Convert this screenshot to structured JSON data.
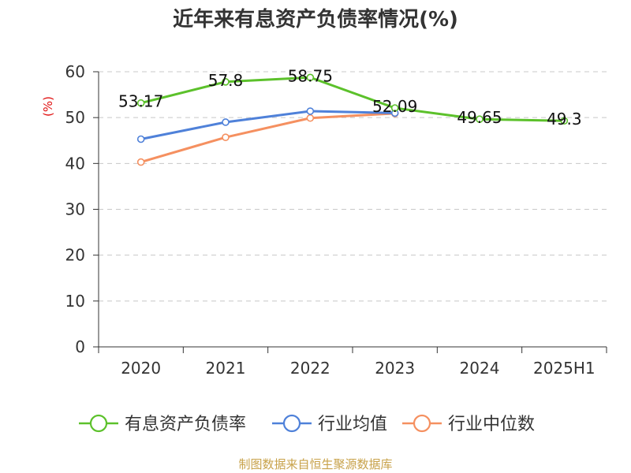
{
  "title": "近年来有息资产负债率情况(%)",
  "source": "制图数据来自恒生聚源数据库",
  "chart_data": {
    "type": "line",
    "title": "近年来有息资产负债率情况(%)",
    "ylabel": "(%)",
    "xlabel": "",
    "categories": [
      "2020",
      "2021",
      "2022",
      "2023",
      "2024",
      "2025H1"
    ],
    "ylim": [
      0,
      60
    ],
    "yticks": [
      0,
      10,
      20,
      30,
      40,
      50,
      60
    ],
    "grid": true,
    "legend_position": "bottom",
    "series": [
      {
        "name": "有息资产负债率",
        "color": "#5cc12b",
        "values": [
          53.17,
          57.8,
          58.75,
          52.09,
          49.65,
          49.3
        ],
        "labels": [
          "53.17",
          "57.8",
          "58.75",
          "52.09",
          "49.65",
          "49.3"
        ]
      },
      {
        "name": "行业均值",
        "color": "#4f81d9",
        "values": [
          45.3,
          49.0,
          51.4,
          51.0,
          null,
          null
        ]
      },
      {
        "name": "行业中位数",
        "color": "#f59060",
        "values": [
          40.3,
          45.7,
          49.9,
          50.9,
          null,
          null
        ]
      }
    ]
  }
}
